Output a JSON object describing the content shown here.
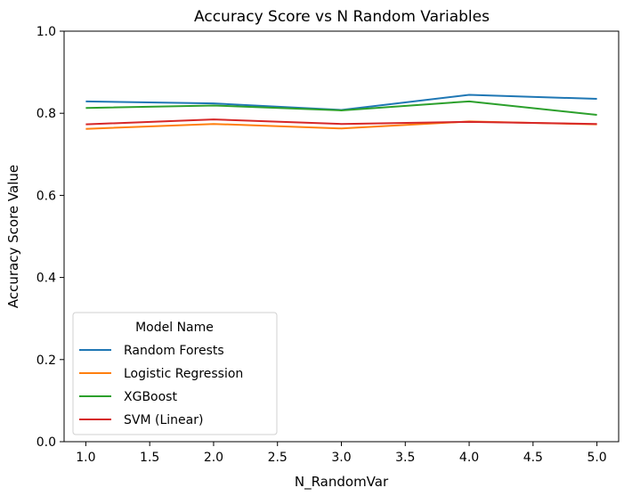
{
  "chart_data": {
    "type": "line",
    "title": "Accuracy Score vs N Random Variables",
    "xlabel": "N_RandomVar",
    "ylabel": "Accuracy Score Value",
    "xlim": [
      0.83,
      5.17
    ],
    "ylim": [
      0.0,
      1.0
    ],
    "xticks": [
      1.0,
      1.5,
      2.0,
      2.5,
      3.0,
      3.5,
      4.0,
      4.5,
      5.0
    ],
    "xtick_labels": [
      "1.0",
      "1.5",
      "2.0",
      "2.5",
      "3.0",
      "3.5",
      "4.0",
      "4.5",
      "5.0"
    ],
    "yticks": [
      0.0,
      0.2,
      0.4,
      0.6,
      0.8,
      1.0
    ],
    "ytick_labels": [
      "0.0",
      "0.2",
      "0.4",
      "0.6",
      "0.8",
      "1.0"
    ],
    "grid": false,
    "legend_title": "Model Name",
    "legend_position": "lower-left",
    "x": [
      1.0,
      2.0,
      3.0,
      4.0,
      5.0
    ],
    "series": [
      {
        "name": "Random Forests",
        "color": "#1f77b4",
        "values": [
          0.829,
          0.824,
          0.808,
          0.845,
          0.835
        ]
      },
      {
        "name": "Logistic Regression",
        "color": "#ff7f0e",
        "values": [
          0.762,
          0.774,
          0.763,
          0.78,
          0.773
        ]
      },
      {
        "name": "XGBoost",
        "color": "#2ca02c",
        "values": [
          0.813,
          0.819,
          0.807,
          0.829,
          0.796
        ]
      },
      {
        "name": "SVM (Linear)",
        "color": "#d62728",
        "values": [
          0.773,
          0.785,
          0.774,
          0.779,
          0.774
        ]
      }
    ]
  }
}
